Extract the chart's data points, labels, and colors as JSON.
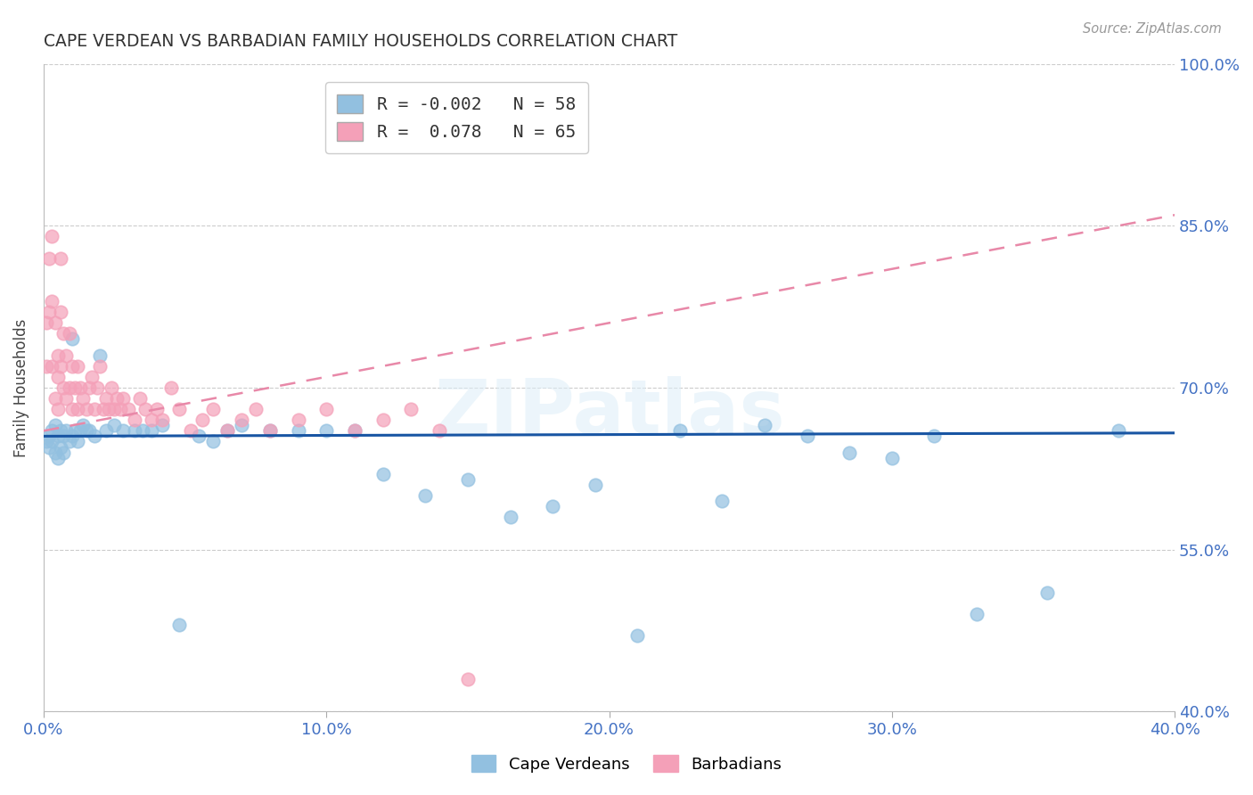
{
  "title": "CAPE VERDEAN VS BARBADIAN FAMILY HOUSEHOLDS CORRELATION CHART",
  "source": "Source: ZipAtlas.com",
  "ylabel": "Family Households",
  "xlim": [
    0.0,
    0.4
  ],
  "ylim": [
    0.4,
    1.0
  ],
  "yticks": [
    0.4,
    0.55,
    0.7,
    0.85,
    1.0
  ],
  "xticks": [
    0.0,
    0.1,
    0.2,
    0.3,
    0.4
  ],
  "xtick_labels": [
    "0.0%",
    "10.0%",
    "20.0%",
    "30.0%",
    "40.0%"
  ],
  "ytick_labels": [
    "40.0%",
    "55.0%",
    "70.0%",
    "85.0%",
    "100.0%"
  ],
  "legend_r_blue": "-0.002",
  "legend_n_blue": "58",
  "legend_r_pink": "0.078",
  "legend_n_pink": "65",
  "blue_color": "#92C0E0",
  "pink_color": "#F4A0B8",
  "trend_blue_color": "#1855A3",
  "trend_pink_color": "#E888A8",
  "watermark": "ZIPatlas",
  "cape_verdean_x": [
    0.001,
    0.002,
    0.002,
    0.003,
    0.003,
    0.004,
    0.004,
    0.005,
    0.005,
    0.006,
    0.006,
    0.007,
    0.007,
    0.008,
    0.009,
    0.01,
    0.01,
    0.011,
    0.012,
    0.013,
    0.014,
    0.015,
    0.016,
    0.018,
    0.02,
    0.022,
    0.025,
    0.028,
    0.032,
    0.035,
    0.038,
    0.042,
    0.048,
    0.055,
    0.06,
    0.065,
    0.07,
    0.08,
    0.09,
    0.1,
    0.11,
    0.12,
    0.135,
    0.15,
    0.165,
    0.18,
    0.195,
    0.21,
    0.225,
    0.24,
    0.255,
    0.27,
    0.285,
    0.3,
    0.315,
    0.33,
    0.355,
    0.38
  ],
  "cape_verdean_y": [
    0.65,
    0.655,
    0.645,
    0.66,
    0.65,
    0.665,
    0.64,
    0.655,
    0.635,
    0.66,
    0.645,
    0.655,
    0.64,
    0.66,
    0.65,
    0.745,
    0.655,
    0.66,
    0.65,
    0.66,
    0.665,
    0.66,
    0.66,
    0.655,
    0.73,
    0.66,
    0.665,
    0.66,
    0.66,
    0.66,
    0.66,
    0.665,
    0.48,
    0.655,
    0.65,
    0.66,
    0.665,
    0.66,
    0.66,
    0.66,
    0.66,
    0.62,
    0.6,
    0.615,
    0.58,
    0.59,
    0.61,
    0.47,
    0.66,
    0.595,
    0.665,
    0.655,
    0.64,
    0.635,
    0.655,
    0.49,
    0.51,
    0.66
  ],
  "barbadian_x": [
    0.001,
    0.001,
    0.002,
    0.002,
    0.003,
    0.003,
    0.003,
    0.004,
    0.004,
    0.005,
    0.005,
    0.005,
    0.006,
    0.006,
    0.006,
    0.007,
    0.007,
    0.008,
    0.008,
    0.009,
    0.009,
    0.01,
    0.01,
    0.011,
    0.012,
    0.012,
    0.013,
    0.014,
    0.015,
    0.016,
    0.017,
    0.018,
    0.019,
    0.02,
    0.021,
    0.022,
    0.023,
    0.024,
    0.025,
    0.026,
    0.027,
    0.028,
    0.03,
    0.032,
    0.034,
    0.036,
    0.038,
    0.04,
    0.042,
    0.045,
    0.048,
    0.052,
    0.056,
    0.06,
    0.065,
    0.07,
    0.075,
    0.08,
    0.09,
    0.1,
    0.11,
    0.12,
    0.13,
    0.14,
    0.15
  ],
  "barbadian_y": [
    0.76,
    0.72,
    0.77,
    0.82,
    0.84,
    0.78,
    0.72,
    0.76,
    0.69,
    0.73,
    0.71,
    0.68,
    0.82,
    0.77,
    0.72,
    0.75,
    0.7,
    0.73,
    0.69,
    0.75,
    0.7,
    0.72,
    0.68,
    0.7,
    0.72,
    0.68,
    0.7,
    0.69,
    0.68,
    0.7,
    0.71,
    0.68,
    0.7,
    0.72,
    0.68,
    0.69,
    0.68,
    0.7,
    0.68,
    0.69,
    0.68,
    0.69,
    0.68,
    0.67,
    0.69,
    0.68,
    0.67,
    0.68,
    0.67,
    0.7,
    0.68,
    0.66,
    0.67,
    0.68,
    0.66,
    0.67,
    0.68,
    0.66,
    0.67,
    0.68,
    0.66,
    0.67,
    0.68,
    0.66,
    0.43
  ],
  "blue_trend_x": [
    0.0,
    0.4
  ],
  "blue_trend_y": [
    0.655,
    0.658
  ],
  "pink_trend_x": [
    0.0,
    0.4
  ],
  "pink_trend_y": [
    0.66,
    0.86
  ]
}
